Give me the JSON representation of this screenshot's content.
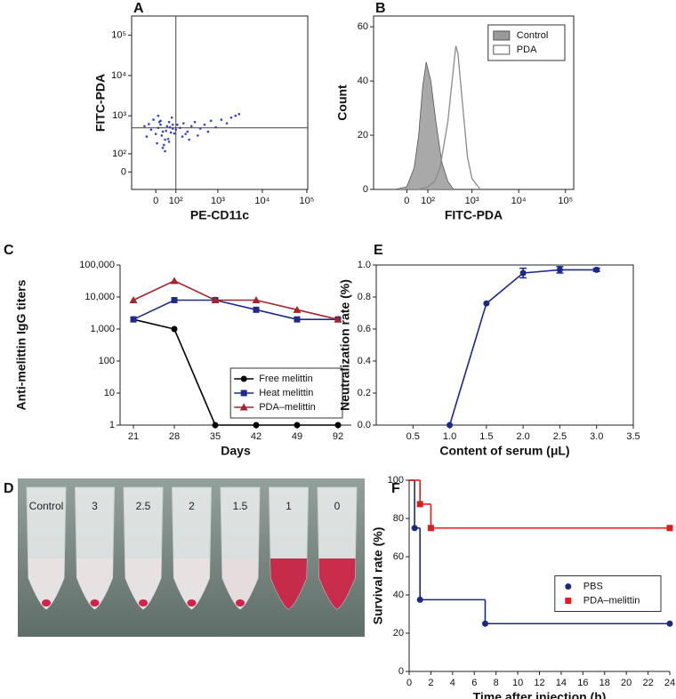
{
  "chart_data": [
    {
      "type": "scatter",
      "panel": "A",
      "xlabel": "PE-CD11c",
      "ylabel": "FITC-PDA",
      "xscale": "biexponential",
      "yscale": "biexponential",
      "xlim": [
        -130,
        105000
      ],
      "ylim": [
        -95,
        300000
      ],
      "xticks": [
        0,
        {
          "value": 100,
          "label": "10²"
        },
        {
          "value": 1000,
          "label": "10³"
        },
        {
          "value": 10000,
          "label": "10⁴"
        },
        {
          "value": 100000,
          "label": "10⁵"
        }
      ],
      "yticks": [
        0,
        {
          "value": 100,
          "label": "10²"
        },
        {
          "value": 1000,
          "label": "10³"
        },
        {
          "value": 10000,
          "label": "10⁴"
        },
        {
          "value": 100000,
          "label": "10⁵"
        }
      ],
      "gates": {
        "x": 100,
        "y": 500
      },
      "color": "#3445c4",
      "x": [
        -40,
        -20,
        0,
        10,
        20,
        30,
        40,
        50,
        60,
        70,
        80,
        -30,
        5,
        25,
        45,
        65,
        90,
        110,
        -10,
        15,
        35,
        55,
        75,
        100,
        130,
        160,
        200,
        250,
        300,
        400,
        500,
        700,
        900,
        1200,
        1600,
        2000,
        2500,
        3000,
        150,
        180,
        220,
        350,
        -50,
        30,
        60,
        20,
        40,
        10,
        80,
        600
      ],
      "values": [
        300,
        450,
        350,
        500,
        600,
        400,
        250,
        550,
        700,
        380,
        480,
        620,
        200,
        320,
        420,
        520,
        360,
        600,
        800,
        700,
        180,
        260,
        900,
        450,
        500,
        650,
        400,
        550,
        700,
        480,
        600,
        750,
        520,
        800,
        650,
        900,
        1000,
        1100,
        300,
        350,
        250,
        320,
        550,
        150,
        220,
        750,
        120,
        1000,
        600,
        400
      ]
    },
    {
      "type": "area",
      "panel": "B",
      "xlabel": "FITC-PDA",
      "ylabel": "Count",
      "xscale": "biexponential",
      "xlim": [
        -200,
        150000
      ],
      "ylim": [
        0,
        64
      ],
      "xticks": [
        0,
        {
          "value": 100,
          "label": "10²"
        },
        {
          "value": 1000,
          "label": "10³"
        },
        {
          "value": 10000,
          "label": "10⁴"
        },
        {
          "value": 100000,
          "label": "10⁵"
        }
      ],
      "yticks": [
        0,
        20,
        40,
        60
      ],
      "legend": "upper right",
      "series": [
        {
          "name": "Control",
          "color": "#9a9a9a",
          "fill": true,
          "x": [
            -50,
            0,
            30,
            50,
            70,
            90,
            120,
            160,
            220,
            300,
            400
          ],
          "values": [
            0,
            1,
            8,
            20,
            38,
            47,
            40,
            25,
            10,
            3,
            0
          ]
        },
        {
          "name": "PDA",
          "color": "#8a8a8a",
          "fill": false,
          "x": [
            50,
            100,
            150,
            200,
            300,
            400,
            450,
            500,
            600,
            800,
            1000,
            1500
          ],
          "values": [
            0,
            1,
            3,
            8,
            25,
            45,
            53,
            50,
            35,
            12,
            4,
            0
          ]
        }
      ]
    },
    {
      "type": "line",
      "panel": "C",
      "xlabel": "Days",
      "ylabel": "Anti-melittin IgG titers",
      "yscale": "log",
      "categories": [
        "21",
        "28",
        "35",
        "42",
        "49",
        "92"
      ],
      "ylim": [
        1,
        100000
      ],
      "yticks": [
        1,
        10,
        100,
        {
          "value": 1000,
          "label": "1,000"
        },
        {
          "value": 10000,
          "label": "10,000"
        },
        {
          "value": 100000,
          "label": "100,000"
        }
      ],
      "legend": "lower right",
      "series": [
        {
          "name": "Free melittin",
          "color": "#000000",
          "marker": "circle",
          "values": [
            2000,
            1000,
            1,
            1,
            1,
            1
          ]
        },
        {
          "name": "Heat melittin",
          "color": "#1f2a8a",
          "marker": "square",
          "values": [
            2000,
            8000,
            8000,
            4000,
            2000,
            2000
          ]
        },
        {
          "name": "PDA–melittin",
          "color": "#a3262a",
          "marker": "triangle",
          "values": [
            8000,
            32000,
            8000,
            8000,
            4000,
            2000
          ]
        }
      ]
    },
    {
      "type": "line",
      "panel": "E",
      "xlabel": "Content of serum (μL)",
      "ylabel": "Neutralization rate (%)",
      "xlim": [
        0,
        3.5
      ],
      "xticks": [
        0.5,
        {
          "value": 1,
          "label": "1.0"
        },
        1.5,
        {
          "value": 2,
          "label": "2.0"
        },
        2.5,
        {
          "value": 3,
          "label": "3.0"
        },
        3.5
      ],
      "ylim": [
        0,
        1
      ],
      "yticks": [
        {
          "value": 0,
          "label": "0.0"
        },
        0.2,
        0.4,
        0.6,
        0.8,
        {
          "value": 1,
          "label": "1.0"
        }
      ],
      "x": [
        1,
        1.5,
        2,
        2.5,
        3
      ],
      "series": [
        {
          "color": "#1a2a8c",
          "marker": "circle",
          "values": [
            0,
            0.76,
            0.95,
            0.97,
            0.97
          ],
          "errors": [
            0,
            0,
            0.03,
            0.02,
            0.01
          ]
        }
      ]
    },
    {
      "type": "step",
      "panel": "F",
      "xlabel": "Time after injection (h)",
      "ylabel": "Survival rate (%)",
      "xlim": [
        0,
        24
      ],
      "xticks": [
        0,
        2,
        4,
        6,
        8,
        10,
        12,
        14,
        16,
        18,
        20,
        22,
        24
      ],
      "ylim": [
        0,
        100
      ],
      "yticks": [
        0,
        20,
        40,
        60,
        80,
        100
      ],
      "legend": "center right",
      "series": [
        {
          "name": "PBS",
          "color": "#1c2a7e",
          "marker": "circle",
          "x": [
            0,
            0.5,
            1,
            7,
            24
          ],
          "values": [
            100,
            75,
            37.5,
            25,
            25
          ]
        },
        {
          "name": "PDA–melittin",
          "color": "#e41a1c",
          "marker": "square",
          "x": [
            0,
            1,
            2,
            24
          ],
          "values": [
            100,
            87.5,
            75,
            75
          ]
        }
      ]
    }
  ],
  "photo": {
    "panel": "D",
    "tube_labels": [
      "Control",
      "3",
      "2.5",
      "2",
      "1.5",
      "1",
      "0"
    ],
    "tube_colors": [
      "#e8e1e2",
      "#e8e1e2",
      "#e8e1e2",
      "#e8e1e2",
      "#e6dcdd",
      "#c4173a",
      "#c81a3c"
    ]
  }
}
